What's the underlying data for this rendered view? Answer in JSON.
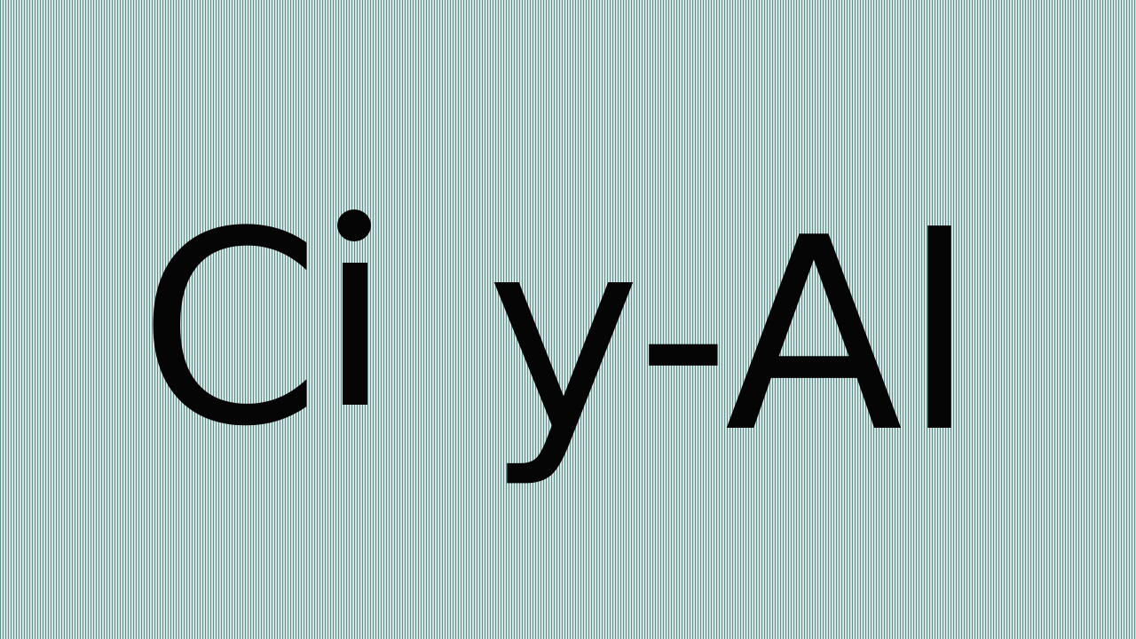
{
  "banner": {
    "text": "Ci y-Al",
    "segments": {
      "c": "C",
      "rest": "y-Al"
    }
  },
  "colors": {
    "text": "#050505",
    "stripe_dark": "#5f8f8b",
    "stripe_light": "#d6e6e4"
  }
}
